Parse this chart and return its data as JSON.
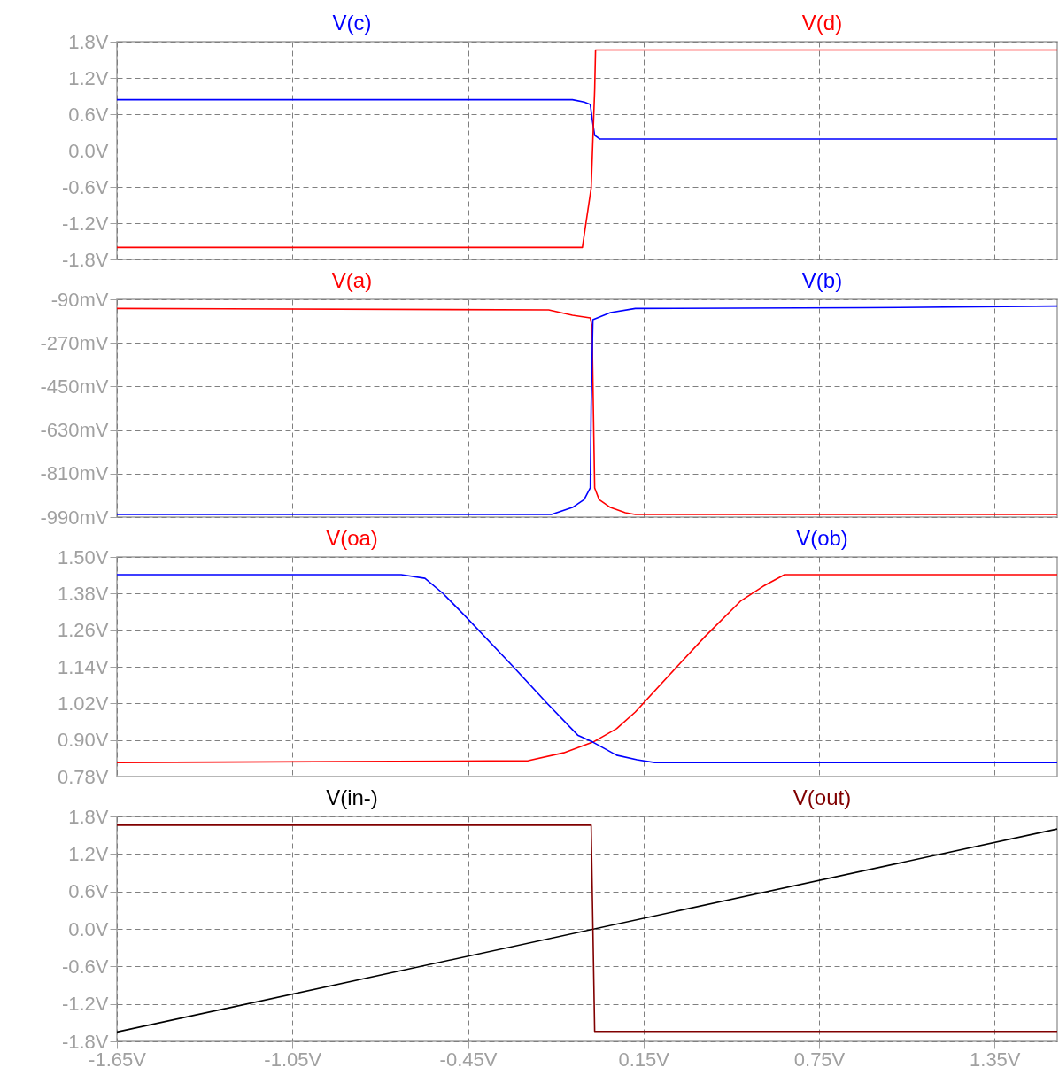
{
  "chart_data": [
    {
      "type": "line",
      "xlim": [
        -1.65,
        1.564
      ],
      "xticks": [
        {
          "value": -1.65,
          "label": null
        },
        {
          "value": -1.05,
          "label": null
        },
        {
          "value": -0.45,
          "label": null
        },
        {
          "value": 0.15,
          "label": null
        },
        {
          "value": 0.75,
          "label": null
        },
        {
          "value": 1.35,
          "label": null
        }
      ],
      "tick_labels": "y",
      "ylim": [
        -1.8,
        1.8
      ],
      "yticks": [
        {
          "value": -1.8,
          "label": "-1.8V"
        },
        {
          "value": -1.2,
          "label": "-1.2V"
        },
        {
          "value": -0.6,
          "label": "-0.6V"
        },
        {
          "value": 0,
          "label": "0.0V"
        },
        {
          "value": 0.6,
          "label": "0.6V"
        },
        {
          "value": 1.2,
          "label": "1.2V"
        },
        {
          "value": 1.8,
          "label": "1.8V"
        }
      ],
      "grid": true,
      "series": [
        {
          "name": "V(c)",
          "color": "#0000ff",
          "x": [
            -1.65,
            -0.093,
            -0.053,
            -0.032,
            -0.026,
            -0.017,
            0.001,
            1.564
          ],
          "values": [
            0.84,
            0.84,
            0.8,
            0.76,
            0.54,
            0.25,
            0.19,
            0.19
          ]
        },
        {
          "name": "V(d)",
          "color": "#ff0000",
          "x": [
            -1.65,
            -0.059,
            -0.029,
            -0.017,
            -0.014,
            1.564
          ],
          "values": [
            -1.6,
            -1.6,
            -0.62,
            1.0,
            1.66,
            1.66
          ]
        }
      ]
    },
    {
      "type": "line",
      "xlim": [
        -1.65,
        1.564
      ],
      "xticks": [
        {
          "value": -1.65,
          "label": null
        },
        {
          "value": -1.05,
          "label": null
        },
        {
          "value": -0.45,
          "label": null
        },
        {
          "value": 0.15,
          "label": null
        },
        {
          "value": 0.75,
          "label": null
        },
        {
          "value": 1.35,
          "label": null
        }
      ],
      "tick_labels": "y",
      "ylim": [
        -990,
        -90
      ],
      "yticks": [
        {
          "value": -990,
          "label": "-990mV"
        },
        {
          "value": -810,
          "label": "-810mV"
        },
        {
          "value": -630,
          "label": "-630mV"
        },
        {
          "value": -450,
          "label": "-450mV"
        },
        {
          "value": -270,
          "label": "-270mV"
        },
        {
          "value": -90,
          "label": "-90mV"
        }
      ],
      "grid": true,
      "series": [
        {
          "name": "V(a)",
          "color": "#ff0000",
          "x": [
            -1.65,
            -0.174,
            -0.093,
            -0.032,
            -0.026,
            -0.017,
            -0.002,
            0.037,
            0.088,
            0.122,
            1.564
          ],
          "values": [
            -128,
            -134,
            -156,
            -167,
            -203,
            -869,
            -917,
            -950,
            -972,
            -979,
            -979
          ]
        },
        {
          "name": "V(b)",
          "color": "#0000ff",
          "x": [
            -1.65,
            -0.165,
            -0.093,
            -0.053,
            -0.032,
            -0.029,
            -0.023,
            -0.008,
            0.037,
            0.122,
            0.9,
            1.564
          ],
          "values": [
            -979,
            -979,
            -950,
            -917,
            -869,
            -529,
            -174,
            -167,
            -145,
            -128,
            -125,
            -118
          ]
        }
      ]
    },
    {
      "type": "line",
      "xlim": [
        -1.65,
        1.564
      ],
      "xticks": [
        {
          "value": -1.65,
          "label": null
        },
        {
          "value": -1.05,
          "label": null
        },
        {
          "value": -0.45,
          "label": null
        },
        {
          "value": 0.15,
          "label": null
        },
        {
          "value": 0.75,
          "label": null
        },
        {
          "value": 1.35,
          "label": null
        }
      ],
      "tick_labels": "y",
      "ylim": [
        0.78,
        1.5
      ],
      "yticks": [
        {
          "value": 0.78,
          "label": "0.78V"
        },
        {
          "value": 0.9,
          "label": "0.90V"
        },
        {
          "value": 1.02,
          "label": "1.02V"
        },
        {
          "value": 1.14,
          "label": "1.14V"
        },
        {
          "value": 1.26,
          "label": "1.26V"
        },
        {
          "value": 1.38,
          "label": "1.38V"
        },
        {
          "value": 1.5,
          "label": "1.50V"
        }
      ],
      "grid": true,
      "series": [
        {
          "name": "V(oa)",
          "color": "#ff0000",
          "x": [
            -1.65,
            -0.244,
            -0.123,
            -0.023,
            0.058,
            0.122,
            0.239,
            0.36,
            0.481,
            0.559,
            0.632,
            1.564
          ],
          "values": [
            0.826,
            0.832,
            0.858,
            0.893,
            0.937,
            0.992,
            1.114,
            1.239,
            1.355,
            1.404,
            1.442,
            1.442
          ]
        },
        {
          "name": "V(ob)",
          "color": "#0000ff",
          "x": [
            -1.65,
            -0.678,
            -0.597,
            -0.536,
            -0.467,
            -0.295,
            -0.183,
            -0.075,
            -0.023,
            0.058,
            0.128,
            0.188,
            1.564
          ],
          "values": [
            1.442,
            1.442,
            1.43,
            1.381,
            1.314,
            1.14,
            1.024,
            0.916,
            0.893,
            0.85,
            0.835,
            0.826,
            0.826
          ]
        }
      ]
    },
    {
      "type": "line",
      "xlim": [
        -1.65,
        1.564
      ],
      "xticks": [
        {
          "value": -1.65,
          "label": "-1.65V"
        },
        {
          "value": -1.05,
          "label": "-1.05V"
        },
        {
          "value": -0.45,
          "label": "-0.45V"
        },
        {
          "value": 0.15,
          "label": "0.15V"
        },
        {
          "value": 0.75,
          "label": "0.75V"
        },
        {
          "value": 1.35,
          "label": "1.35V"
        }
      ],
      "ylim": [
        -1.8,
        1.8
      ],
      "yticks": [
        {
          "value": -1.8,
          "label": "-1.8V"
        },
        {
          "value": -1.2,
          "label": "-1.2V"
        },
        {
          "value": -0.6,
          "label": "-0.6V"
        },
        {
          "value": 0,
          "label": "0.0V"
        },
        {
          "value": 0.6,
          "label": "0.6V"
        },
        {
          "value": 1.2,
          "label": "1.2V"
        },
        {
          "value": 1.8,
          "label": "1.8V"
        }
      ],
      "grid": true,
      "series": [
        {
          "name": "V(in-)",
          "color": "#000000",
          "x": [
            -1.65,
            1.564
          ],
          "values": [
            -1.65,
            1.6
          ]
        },
        {
          "name": "V(out)",
          "color": "#800000",
          "x": [
            -1.65,
            -0.029,
            -0.017,
            1.564
          ],
          "values": [
            1.66,
            1.66,
            -1.64,
            -1.64
          ]
        }
      ]
    }
  ]
}
